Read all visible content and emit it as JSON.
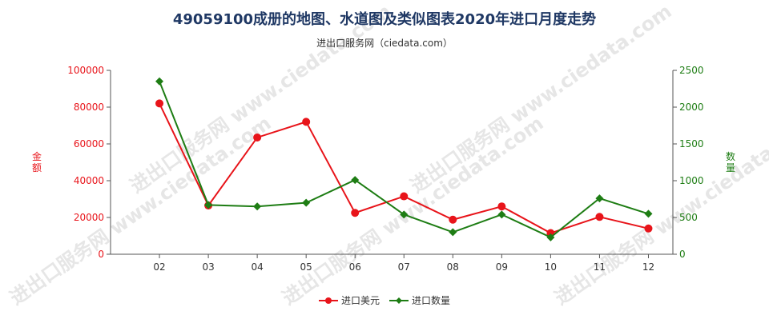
{
  "title": "49059100成册的地图、水道图及类似图表2020年进口月度走势",
  "subtitle": "进出口服务网（ciedata.com）",
  "watermark": "进出口服务网 www.ciedata.com",
  "colors": {
    "amount": "#e8141a",
    "quantity": "#1e7d14",
    "title": "#1f3864",
    "axis": "#555555"
  },
  "chart_data": {
    "type": "line",
    "categories": [
      "02",
      "03",
      "04",
      "05",
      "06",
      "07",
      "08",
      "09",
      "10",
      "11",
      "12"
    ],
    "y_left": {
      "label": "金额",
      "ylim": [
        0,
        100000
      ],
      "ticks": [
        0,
        20000,
        40000,
        60000,
        80000,
        100000
      ],
      "tick_labels": [
        "0",
        "20000",
        "40000",
        "60000",
        "80000",
        "100000"
      ]
    },
    "y_right": {
      "label": "数量",
      "ylim": [
        0,
        2500
      ],
      "ticks": [
        0,
        500,
        1000,
        1500,
        2000,
        2500
      ],
      "tick_labels": [
        "0",
        "500",
        "1000",
        "1500",
        "2000",
        "2500"
      ]
    },
    "series": [
      {
        "name": "进口美元",
        "axis": "left",
        "marker": "circle",
        "color": "#e8141a",
        "values": [
          82000,
          26500,
          63500,
          72000,
          22500,
          31500,
          18800,
          26000,
          11500,
          20300,
          14000
        ]
      },
      {
        "name": "进口数量",
        "axis": "right",
        "marker": "diamond",
        "color": "#1e7d14",
        "values": [
          2350,
          670,
          650,
          700,
          1010,
          540,
          300,
          540,
          230,
          760,
          550
        ]
      }
    ],
    "legend_position": "bottom",
    "grid": false
  }
}
